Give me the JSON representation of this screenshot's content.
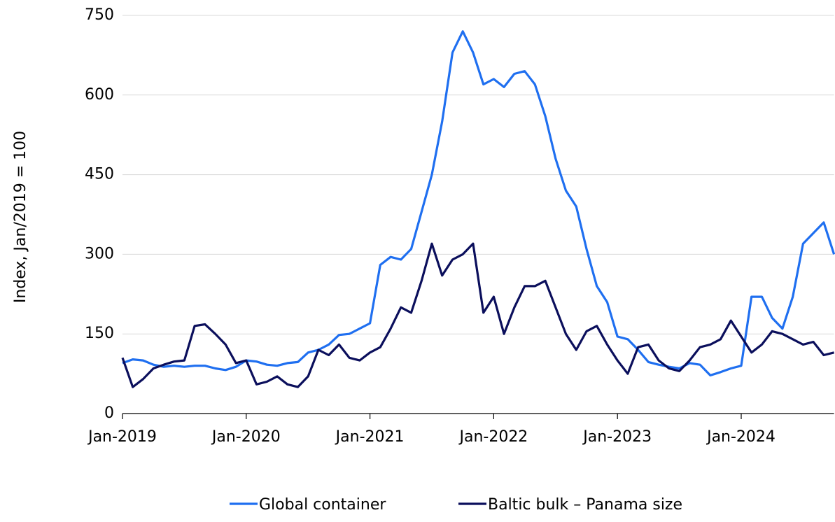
{
  "chart_data": {
    "type": "line",
    "ylabel": "Index, Jan/2019 = 100",
    "x": [
      "Jan-2019",
      "Feb-2019",
      "Mar-2019",
      "Apr-2019",
      "May-2019",
      "Jun-2019",
      "Jul-2019",
      "Aug-2019",
      "Sep-2019",
      "Oct-2019",
      "Nov-2019",
      "Dec-2019",
      "Jan-2020",
      "Feb-2020",
      "Mar-2020",
      "Apr-2020",
      "May-2020",
      "Jun-2020",
      "Jul-2020",
      "Aug-2020",
      "Sep-2020",
      "Oct-2020",
      "Nov-2020",
      "Dec-2020",
      "Jan-2021",
      "Feb-2021",
      "Mar-2021",
      "Apr-2021",
      "May-2021",
      "Jun-2021",
      "Jul-2021",
      "Aug-2021",
      "Sep-2021",
      "Oct-2021",
      "Nov-2021",
      "Dec-2021",
      "Jan-2022",
      "Feb-2022",
      "Mar-2022",
      "Apr-2022",
      "May-2022",
      "Jun-2022",
      "Jul-2022",
      "Aug-2022",
      "Sep-2022",
      "Oct-2022",
      "Nov-2022",
      "Dec-2022",
      "Jan-2023",
      "Feb-2023",
      "Mar-2023",
      "Apr-2023",
      "May-2023",
      "Jun-2023",
      "Jul-2023",
      "Aug-2023",
      "Sep-2023",
      "Oct-2023",
      "Nov-2023",
      "Dec-2023",
      "Jan-2024",
      "Feb-2024",
      "Mar-2024",
      "Apr-2024",
      "May-2024",
      "Jun-2024",
      "Jul-2024",
      "Aug-2024",
      "Sep-2024",
      "Oct-2024"
    ],
    "xticks": [
      "Jan-2019",
      "Jan-2020",
      "Jan-2021",
      "Jan-2022",
      "Jan-2023",
      "Jan-2024"
    ],
    "ylim": [
      0,
      750
    ],
    "yticks": [
      0,
      150,
      300,
      450,
      600,
      750
    ],
    "grid": true,
    "legend": "bottom",
    "series": [
      {
        "name": "Global container",
        "color": "#1f6ff0",
        "values": [
          95,
          102,
          100,
          92,
          88,
          90,
          88,
          90,
          90,
          85,
          82,
          88,
          100,
          98,
          92,
          90,
          95,
          97,
          115,
          120,
          130,
          148,
          150,
          160,
          170,
          280,
          295,
          290,
          310,
          380,
          450,
          550,
          680,
          720,
          680,
          620,
          630,
          615,
          640,
          645,
          620,
          560,
          480,
          420,
          390,
          310,
          240,
          210,
          145,
          140,
          120,
          97,
          92,
          88,
          85,
          95,
          92,
          72,
          78,
          85,
          90,
          220,
          220,
          180,
          160,
          220,
          320,
          340,
          360,
          300
        ]
      },
      {
        "name": "Baltic bulk – Panama size",
        "color": "#0b0f5c",
        "values": [
          105,
          50,
          65,
          85,
          92,
          98,
          100,
          165,
          168,
          150,
          130,
          95,
          100,
          55,
          60,
          70,
          55,
          50,
          70,
          120,
          110,
          130,
          105,
          100,
          115,
          125,
          160,
          200,
          190,
          250,
          320,
          260,
          290,
          300,
          320,
          190,
          220,
          150,
          200,
          240,
          240,
          250,
          200,
          150,
          120,
          155,
          165,
          130,
          100,
          75,
          125,
          130,
          100,
          85,
          80,
          100,
          125,
          130,
          140,
          175,
          145,
          115,
          130,
          155,
          150,
          140,
          130,
          135,
          110,
          115
        ]
      }
    ]
  }
}
